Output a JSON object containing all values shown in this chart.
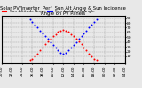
{
  "title": "Solar PV/Inverter  Perf  Sun Alt Angle & Sun Incidence Angle on PV Panels",
  "legend_labels": [
    "Sun Altitude Angle",
    "Sun Incidence Angle"
  ],
  "legend_colors": [
    "red",
    "blue"
  ],
  "background_color": "#e8e8e8",
  "plot_bg": "#e8e8e8",
  "xlim": [
    0,
    24
  ],
  "ylim": [
    -5,
    95
  ],
  "xticks": [
    0,
    2,
    4,
    6,
    8,
    10,
    12,
    14,
    16,
    18,
    20,
    22,
    24
  ],
  "yticks_right": [
    10,
    20,
    30,
    40,
    50,
    60,
    70,
    80,
    90
  ],
  "altitude_x": [
    5.5,
    6,
    6.5,
    7,
    7.5,
    8,
    8.5,
    9,
    9.5,
    10,
    10.5,
    11,
    11.5,
    12,
    12.5,
    13,
    13.5,
    14,
    14.5,
    15,
    15.5,
    16,
    16.5,
    17,
    17.5,
    18,
    18.5
  ],
  "altitude_y": [
    2,
    5,
    10,
    16,
    22,
    28,
    35,
    41,
    47,
    52,
    57,
    61,
    64,
    66,
    64,
    61,
    57,
    52,
    47,
    41,
    35,
    28,
    22,
    16,
    10,
    5,
    2
  ],
  "incidence_x": [
    5.5,
    6,
    6.5,
    7,
    7.5,
    8,
    8.5,
    9,
    9.5,
    10,
    10.5,
    11,
    11.5,
    12,
    12.5,
    13,
    13.5,
    14,
    14.5,
    15,
    15.5,
    16,
    16.5,
    17,
    17.5,
    18,
    18.5
  ],
  "incidence_y": [
    88,
    82,
    76,
    70,
    64,
    58,
    52,
    46,
    40,
    34,
    28,
    22,
    18,
    16,
    18,
    22,
    28,
    34,
    40,
    46,
    52,
    58,
    64,
    70,
    76,
    82,
    88
  ],
  "title_fontsize": 3.8,
  "tick_fontsize": 3.2,
  "legend_fontsize": 3.2,
  "dot_size": 2.0
}
